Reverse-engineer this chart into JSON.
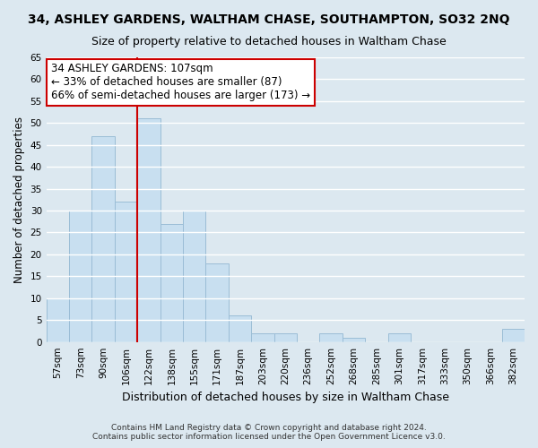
{
  "title": "34, ASHLEY GARDENS, WALTHAM CHASE, SOUTHAMPTON, SO32 2NQ",
  "subtitle": "Size of property relative to detached houses in Waltham Chase",
  "xlabel": "Distribution of detached houses by size in Waltham Chase",
  "ylabel": "Number of detached properties",
  "bar_labels": [
    "57sqm",
    "73sqm",
    "90sqm",
    "106sqm",
    "122sqm",
    "138sqm",
    "155sqm",
    "171sqm",
    "187sqm",
    "203sqm",
    "220sqm",
    "236sqm",
    "252sqm",
    "268sqm",
    "285sqm",
    "301sqm",
    "317sqm",
    "333sqm",
    "350sqm",
    "366sqm",
    "382sqm"
  ],
  "bar_values": [
    10,
    30,
    47,
    32,
    51,
    27,
    30,
    18,
    6,
    2,
    2,
    0,
    2,
    1,
    0,
    2,
    0,
    0,
    0,
    0,
    3
  ],
  "bar_color": "#c8dff0",
  "bar_edge_color": "#9bbdd6",
  "vline_x": 3.5,
  "vline_color": "#cc0000",
  "ylim": [
    0,
    65
  ],
  "yticks": [
    0,
    5,
    10,
    15,
    20,
    25,
    30,
    35,
    40,
    45,
    50,
    55,
    60,
    65
  ],
  "annotation_line1": "34 ASHLEY GARDENS: 107sqm",
  "annotation_line2": "← 33% of detached houses are smaller (87)",
  "annotation_line3": "66% of semi-detached houses are larger (173) →",
  "box_facecolor": "#ffffff",
  "box_edgecolor": "#cc0000",
  "footnote1": "Contains HM Land Registry data © Crown copyright and database right 2024.",
  "footnote2": "Contains public sector information licensed under the Open Government Licence v3.0.",
  "bg_color": "#dce8f0",
  "plot_bg_color": "#dce8f0",
  "grid_color": "#ffffff",
  "title_fontsize": 10,
  "subtitle_fontsize": 9,
  "ylabel_fontsize": 8.5,
  "xlabel_fontsize": 9,
  "tick_fontsize": 7.5,
  "annot_fontsize": 8.5
}
